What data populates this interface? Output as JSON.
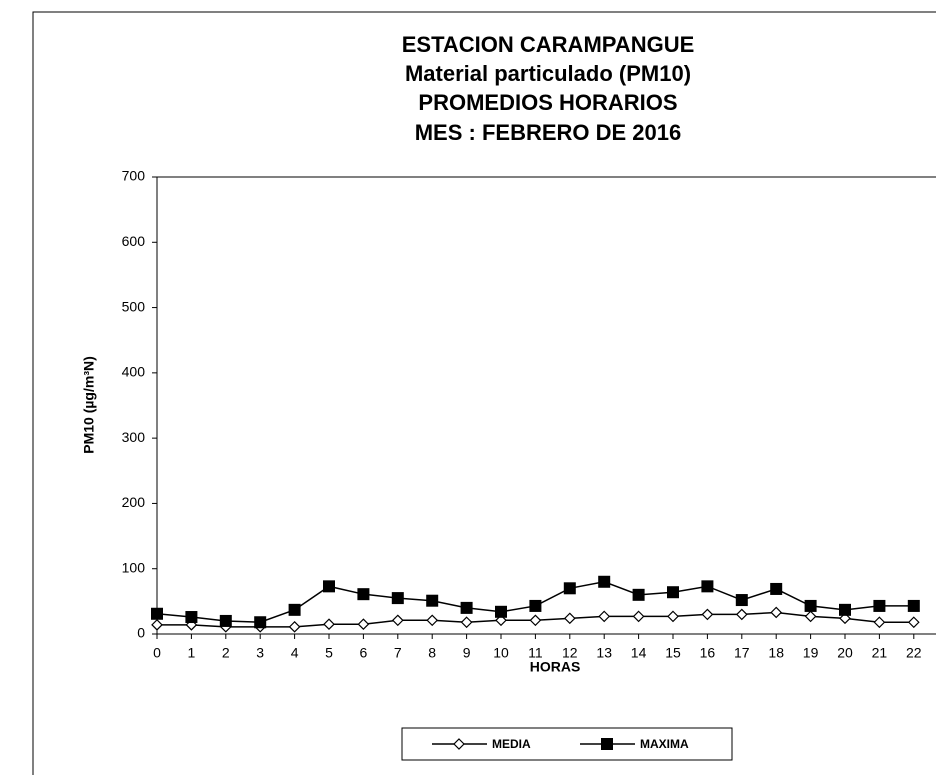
{
  "chart_data": {
    "type": "line",
    "title": [
      "ESTACION  CARAMPANGUE",
      "Material particulado (PM10)",
      "PROMEDIOS  HORARIOS",
      "MES : FEBRERO  DE 2016"
    ],
    "x_label": "HORAS",
    "y_label": "PM10  (µg/m³N)",
    "categories": [
      "0",
      "1",
      "2",
      "3",
      "4",
      "5",
      "6",
      "7",
      "8",
      "9",
      "10",
      "11",
      "12",
      "13",
      "14",
      "15",
      "16",
      "17",
      "18",
      "19",
      "20",
      "21",
      "22"
    ],
    "series": [
      {
        "name": "MEDIA",
        "color": "#000000",
        "marker": "diamond",
        "values": [
          14,
          14,
          11,
          11,
          11,
          15,
          15,
          21,
          21,
          18,
          21,
          21,
          24,
          27,
          27,
          27,
          30,
          30,
          33,
          27,
          24,
          18,
          18
        ]
      },
      {
        "name": "MAXIMA",
        "color": "#000000",
        "marker": "square",
        "values": [
          31,
          26,
          20,
          18,
          37,
          73,
          61,
          55,
          51,
          40,
          34,
          43,
          70,
          80,
          60,
          64,
          73,
          52,
          69,
          43,
          37,
          43,
          43
        ]
      }
    ],
    "ylim": [
      0,
      700
    ],
    "yticks": [
      0,
      100,
      200,
      300,
      400,
      500,
      600,
      700
    ],
    "grid": false,
    "legend": "bottom"
  }
}
